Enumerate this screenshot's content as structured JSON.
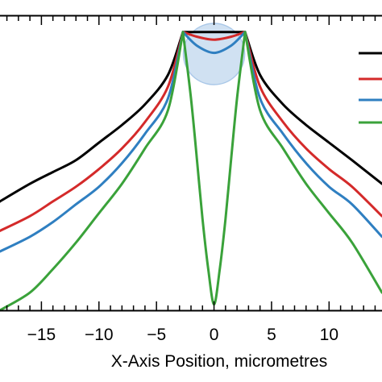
{
  "chart_data": {
    "type": "line",
    "xlabel": "X-Axis Position, micrometres",
    "ylabel": "",
    "xlim": [
      -18.6,
      14.6
    ],
    "ylim": [
      0,
      1
    ],
    "x_tick_labels": [
      "−15",
      "−10",
      "−5",
      "0",
      "5",
      "10"
    ],
    "x_tick_values": [
      -15,
      -10,
      -5,
      0,
      5,
      10
    ],
    "grid": false,
    "legend": "top-right (labels cropped)",
    "highlight": {
      "type": "circle",
      "center_x": 0,
      "color": "#aac8e8"
    },
    "series": [
      {
        "color": "#000000",
        "x": [
          -18.6,
          -16,
          -14,
          -12,
          -10,
          -8,
          -6,
          -4,
          -2.7,
          -1.5,
          0,
          1.5,
          2.7,
          4,
          6,
          8,
          10,
          12,
          14.6
        ],
        "y": [
          0.37,
          0.43,
          0.47,
          0.51,
          0.57,
          0.63,
          0.7,
          0.8,
          0.946,
          0.946,
          0.946,
          0.946,
          0.946,
          0.8,
          0.7,
          0.63,
          0.57,
          0.51,
          0.43
        ]
      },
      {
        "color": "#d42a2a",
        "x": [
          -18.6,
          -16,
          -14,
          -12,
          -10,
          -8,
          -6,
          -4,
          -2.7,
          -1.5,
          0,
          1.5,
          2.7,
          4,
          6,
          8,
          10,
          12,
          14.6
        ],
        "y": [
          0.27,
          0.32,
          0.37,
          0.42,
          0.48,
          0.55,
          0.64,
          0.76,
          0.946,
          0.93,
          0.92,
          0.93,
          0.946,
          0.76,
          0.64,
          0.55,
          0.48,
          0.42,
          0.32
        ]
      },
      {
        "color": "#2f7fc1",
        "x": [
          -18.6,
          -16,
          -14,
          -12,
          -10,
          -8,
          -6,
          -4,
          -2.7,
          -1.5,
          0,
          1.5,
          2.7,
          4,
          6,
          8,
          10,
          12,
          14.6
        ],
        "y": [
          0.2,
          0.25,
          0.3,
          0.36,
          0.42,
          0.5,
          0.6,
          0.72,
          0.946,
          0.9,
          0.875,
          0.9,
          0.946,
          0.72,
          0.6,
          0.5,
          0.42,
          0.36,
          0.25
        ]
      },
      {
        "color": "#3aa23a",
        "x": [
          -18.6,
          -16,
          -14,
          -12,
          -10,
          -8,
          -6,
          -4,
          -2.7,
          -2,
          -1.5,
          -1,
          -0.5,
          0,
          0.5,
          1,
          1.5,
          2,
          2.7,
          4,
          6,
          8,
          10,
          12,
          14.6
        ],
        "y": [
          0.0,
          0.06,
          0.14,
          0.23,
          0.33,
          0.43,
          0.55,
          0.68,
          0.946,
          0.72,
          0.52,
          0.31,
          0.14,
          0.02,
          0.14,
          0.31,
          0.52,
          0.72,
          0.946,
          0.68,
          0.55,
          0.43,
          0.33,
          0.23,
          0.06
        ]
      }
    ]
  }
}
